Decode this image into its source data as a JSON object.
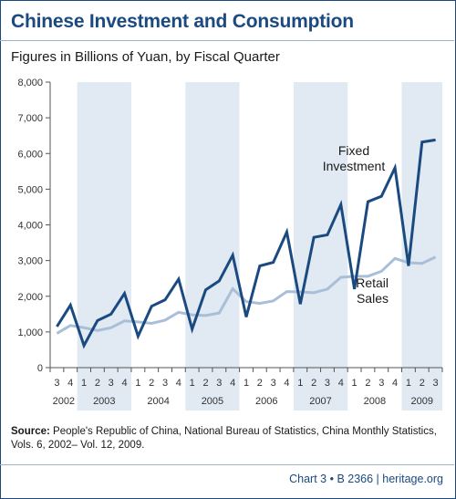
{
  "title": "Chinese Investment and Consumption",
  "subtitle": "Figures in Billions of Yuan, by Fiscal Quarter",
  "source": {
    "label": "Source:",
    "text": "People's Republic of China, National Bureau of Statistics, China Monthly Statistics, Vols. 6, 2002– Vol. 12, 2009."
  },
  "footer": {
    "chart_id": "Chart 3 • B 2366",
    "site": "heritage.org"
  },
  "chart_data": {
    "type": "line",
    "title": "Chinese Investment and Consumption",
    "subtitle": "Figures in Billions of Yuan, by Fiscal Quarter",
    "ylim": [
      0,
      8000
    ],
    "yticks": [
      0,
      1000,
      2000,
      3000,
      4000,
      5000,
      6000,
      7000,
      8000
    ],
    "ytick_labels": [
      "0",
      "1,000",
      "2,000",
      "3,000",
      "4,000",
      "5,000",
      "6,000",
      "7,000",
      "8,000"
    ],
    "x": [
      "2002 Q3",
      "2002 Q4",
      "2003 Q1",
      "2003 Q2",
      "2003 Q3",
      "2003 Q4",
      "2004 Q1",
      "2004 Q2",
      "2004 Q3",
      "2004 Q4",
      "2005 Q1",
      "2005 Q2",
      "2005 Q3",
      "2005 Q4",
      "2006 Q1",
      "2006 Q2",
      "2006 Q3",
      "2006 Q4",
      "2007 Q1",
      "2007 Q2",
      "2007 Q3",
      "2007 Q4",
      "2008 Q1",
      "2008 Q2",
      "2008 Q3",
      "2008 Q4",
      "2009 Q1",
      "2009 Q2",
      "2009 Q3"
    ],
    "quarter_labels": [
      "3",
      "4",
      "1",
      "2",
      "3",
      "4",
      "1",
      "2",
      "3",
      "4",
      "1",
      "2",
      "3",
      "4",
      "1",
      "2",
      "3",
      "4",
      "1",
      "2",
      "3",
      "4",
      "1",
      "2",
      "3",
      "4",
      "1",
      "2",
      "3"
    ],
    "years": [
      {
        "label": "2002",
        "start": 0,
        "end": 1,
        "shaded": false
      },
      {
        "label": "2003",
        "start": 2,
        "end": 5,
        "shaded": true
      },
      {
        "label": "2004",
        "start": 6,
        "end": 9,
        "shaded": false
      },
      {
        "label": "2005",
        "start": 10,
        "end": 13,
        "shaded": true
      },
      {
        "label": "2006",
        "start": 14,
        "end": 17,
        "shaded": false
      },
      {
        "label": "2007",
        "start": 18,
        "end": 21,
        "shaded": true
      },
      {
        "label": "2008",
        "start": 22,
        "end": 25,
        "shaded": false
      },
      {
        "label": "2009",
        "start": 26,
        "end": 28,
        "shaded": true
      }
    ],
    "series": [
      {
        "name": "Fixed Investment",
        "label_lines": [
          "Fixed",
          "Investment"
        ],
        "color": "#1a4a80",
        "values": [
          1150,
          1750,
          620,
          1320,
          1500,
          2080,
          880,
          1720,
          1900,
          2480,
          1080,
          2180,
          2430,
          3150,
          1420,
          2850,
          2950,
          3800,
          1780,
          3650,
          3720,
          4570,
          2200,
          4650,
          4800,
          5600,
          2850,
          6320,
          6380
        ]
      },
      {
        "name": "Retail Sales",
        "label_lines": [
          "Retail",
          "Sales"
        ],
        "color": "#a9bfd9",
        "values": [
          960,
          1180,
          1120,
          1040,
          1120,
          1310,
          1280,
          1240,
          1330,
          1550,
          1480,
          1460,
          1530,
          2210,
          1850,
          1800,
          1870,
          2130,
          2120,
          2100,
          2200,
          2530,
          2560,
          2560,
          2700,
          3060,
          2940,
          2920,
          3100
        ]
      }
    ],
    "grid": false,
    "legend": "inline labels"
  }
}
